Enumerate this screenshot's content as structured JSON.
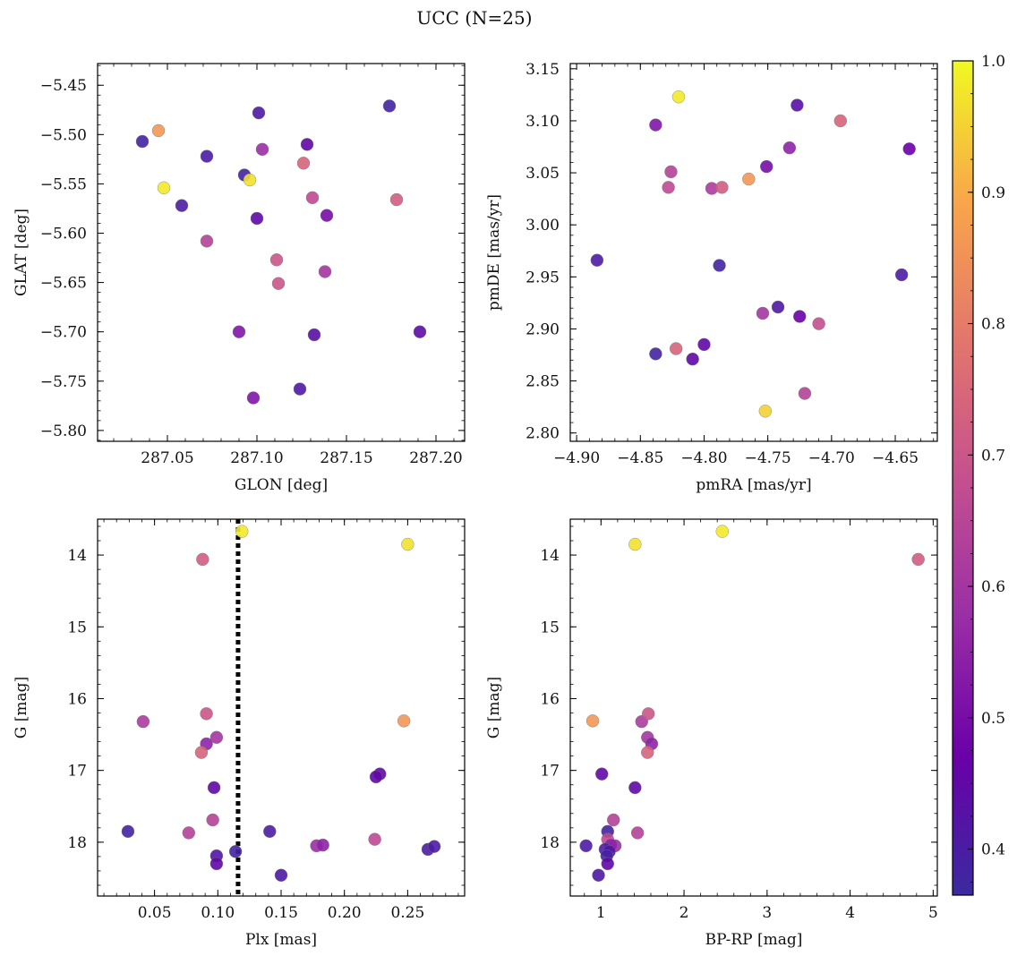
{
  "title": "UCC (N=25)",
  "colorbar": {
    "min": 0.365,
    "max": 1.0,
    "ticks": [
      0.4,
      0.5,
      0.6,
      0.7,
      0.8,
      0.9,
      1.0
    ],
    "tick_labels": [
      "0.4",
      "0.5",
      "0.6",
      "0.7",
      "0.8",
      "0.9",
      "1.0"
    ],
    "colormap": "plasma",
    "colors": [
      "#3b2aa0",
      "#6a00a8",
      "#9a2ea6",
      "#c5508f",
      "#e3766b",
      "#f9a64a",
      "#f0f921"
    ]
  },
  "chart_data": [
    {
      "type": "scatter",
      "xlabel": "GLON [deg]",
      "ylabel": "GLAT [deg]",
      "xlim": [
        287.011,
        287.216
      ],
      "ylim": [
        -5.811,
        -5.428
      ],
      "y_inverted": false,
      "xticks": [
        287.05,
        287.1,
        287.15,
        287.2
      ],
      "xtick_labels": [
        "287.05",
        "287.10",
        "287.15",
        "287.20"
      ],
      "yticks": [
        -5.45,
        -5.5,
        -5.55,
        -5.6,
        -5.65,
        -5.7,
        -5.75,
        -5.8
      ],
      "ytick_labels": [
        "−5.45",
        "−5.50",
        "−5.55",
        "−5.60",
        "−5.65",
        "−5.70",
        "−5.75",
        "−5.80"
      ],
      "points": [
        {
          "x": 287.036,
          "y": -5.507,
          "c": 0.38
        },
        {
          "x": 287.045,
          "y": -5.496,
          "c": 0.86
        },
        {
          "x": 287.048,
          "y": -5.554,
          "c": 0.98
        },
        {
          "x": 287.058,
          "y": -5.572,
          "c": 0.4
        },
        {
          "x": 287.072,
          "y": -5.522,
          "c": 0.4
        },
        {
          "x": 287.072,
          "y": -5.608,
          "c": 0.64
        },
        {
          "x": 287.093,
          "y": -5.541,
          "c": 0.38
        },
        {
          "x": 287.096,
          "y": -5.546,
          "c": 0.97
        },
        {
          "x": 287.101,
          "y": -5.478,
          "c": 0.41
        },
        {
          "x": 287.103,
          "y": -5.515,
          "c": 0.58
        },
        {
          "x": 287.1,
          "y": -5.585,
          "c": 0.45
        },
        {
          "x": 287.111,
          "y": -5.627,
          "c": 0.7
        },
        {
          "x": 287.112,
          "y": -5.651,
          "c": 0.7
        },
        {
          "x": 287.126,
          "y": -5.529,
          "c": 0.74
        },
        {
          "x": 287.128,
          "y": -5.51,
          "c": 0.45
        },
        {
          "x": 287.131,
          "y": -5.564,
          "c": 0.66
        },
        {
          "x": 287.139,
          "y": -5.582,
          "c": 0.5
        },
        {
          "x": 287.138,
          "y": -5.639,
          "c": 0.6
        },
        {
          "x": 287.132,
          "y": -5.703,
          "c": 0.43
        },
        {
          "x": 287.09,
          "y": -5.7,
          "c": 0.52
        },
        {
          "x": 287.098,
          "y": -5.767,
          "c": 0.52
        },
        {
          "x": 287.124,
          "y": -5.758,
          "c": 0.41
        },
        {
          "x": 287.174,
          "y": -5.471,
          "c": 0.38
        },
        {
          "x": 287.178,
          "y": -5.566,
          "c": 0.72
        },
        {
          "x": 287.191,
          "y": -5.7,
          "c": 0.44
        }
      ]
    },
    {
      "type": "scatter",
      "xlabel": "pmRA [mas/yr]",
      "ylabel": "pmDE [mas/yr]",
      "xlim": [
        -4.905,
        -4.617
      ],
      "ylim": [
        2.792,
        3.155
      ],
      "y_inverted": false,
      "xticks": [
        -4.9,
        -4.85,
        -4.8,
        -4.75,
        -4.7,
        -4.65
      ],
      "xtick_labels": [
        "−4.90",
        "−4.85",
        "−4.80",
        "−4.75",
        "−4.70",
        "−4.65"
      ],
      "yticks": [
        2.8,
        2.85,
        2.9,
        2.95,
        3.0,
        3.05,
        3.1,
        3.15
      ],
      "ytick_labels": [
        "2.80",
        "2.85",
        "2.90",
        "2.95",
        "3.00",
        "3.05",
        "3.10",
        "3.15"
      ],
      "points": [
        {
          "x": -4.884,
          "y": 2.966,
          "c": 0.4
        },
        {
          "x": -4.838,
          "y": 3.096,
          "c": 0.52
        },
        {
          "x": -4.82,
          "y": 3.123,
          "c": 0.98
        },
        {
          "x": -4.826,
          "y": 3.051,
          "c": 0.64
        },
        {
          "x": -4.828,
          "y": 3.036,
          "c": 0.66
        },
        {
          "x": -4.794,
          "y": 3.035,
          "c": 0.62
        },
        {
          "x": -4.786,
          "y": 3.036,
          "c": 0.72
        },
        {
          "x": -4.765,
          "y": 3.044,
          "c": 0.86
        },
        {
          "x": -4.751,
          "y": 3.056,
          "c": 0.5
        },
        {
          "x": -4.733,
          "y": 3.074,
          "c": 0.55
        },
        {
          "x": -4.727,
          "y": 3.115,
          "c": 0.43
        },
        {
          "x": -4.693,
          "y": 3.1,
          "c": 0.74
        },
        {
          "x": -4.639,
          "y": 3.073,
          "c": 0.47
        },
        {
          "x": -4.788,
          "y": 2.961,
          "c": 0.38
        },
        {
          "x": -4.645,
          "y": 2.952,
          "c": 0.4
        },
        {
          "x": -4.742,
          "y": 2.921,
          "c": 0.41
        },
        {
          "x": -4.754,
          "y": 2.915,
          "c": 0.6
        },
        {
          "x": -4.725,
          "y": 2.912,
          "c": 0.47
        },
        {
          "x": -4.71,
          "y": 2.905,
          "c": 0.68
        },
        {
          "x": -4.8,
          "y": 2.885,
          "c": 0.45
        },
        {
          "x": -4.822,
          "y": 2.881,
          "c": 0.74
        },
        {
          "x": -4.838,
          "y": 2.876,
          "c": 0.38
        },
        {
          "x": -4.809,
          "y": 2.871,
          "c": 0.45
        },
        {
          "x": -4.721,
          "y": 2.838,
          "c": 0.64
        },
        {
          "x": -4.752,
          "y": 2.821,
          "c": 0.95
        }
      ]
    },
    {
      "type": "scatter",
      "xlabel": "Plx [mas]",
      "ylabel": "G [mag]",
      "xlim": [
        0.005,
        0.295
      ],
      "ylim": [
        13.5,
        18.75
      ],
      "y_inverted": true,
      "vline": {
        "x": 0.116,
        "style": "dotted"
      },
      "xticks": [
        0.05,
        0.1,
        0.15,
        0.2,
        0.25
      ],
      "xtick_labels": [
        "0.05",
        "0.10",
        "0.15",
        "0.20",
        "0.25"
      ],
      "yticks": [
        14,
        15,
        16,
        17,
        18
      ],
      "ytick_labels": [
        "14",
        "15",
        "16",
        "17",
        "18"
      ],
      "points": [
        {
          "x": 0.119,
          "y": 13.67,
          "c": 0.98
        },
        {
          "x": 0.25,
          "y": 13.85,
          "c": 0.97
        },
        {
          "x": 0.088,
          "y": 14.06,
          "c": 0.72
        },
        {
          "x": 0.041,
          "y": 16.32,
          "c": 0.62
        },
        {
          "x": 0.091,
          "y": 16.21,
          "c": 0.7
        },
        {
          "x": 0.099,
          "y": 16.54,
          "c": 0.6
        },
        {
          "x": 0.091,
          "y": 16.63,
          "c": 0.55
        },
        {
          "x": 0.087,
          "y": 16.75,
          "c": 0.74
        },
        {
          "x": 0.247,
          "y": 16.31,
          "c": 0.86
        },
        {
          "x": 0.097,
          "y": 17.24,
          "c": 0.45
        },
        {
          "x": 0.228,
          "y": 17.05,
          "c": 0.45
        },
        {
          "x": 0.225,
          "y": 17.09,
          "c": 0.45
        },
        {
          "x": 0.096,
          "y": 17.69,
          "c": 0.64
        },
        {
          "x": 0.029,
          "y": 17.85,
          "c": 0.38
        },
        {
          "x": 0.077,
          "y": 17.87,
          "c": 0.64
        },
        {
          "x": 0.141,
          "y": 17.85,
          "c": 0.4
        },
        {
          "x": 0.224,
          "y": 17.96,
          "c": 0.66
        },
        {
          "x": 0.178,
          "y": 18.05,
          "c": 0.58
        },
        {
          "x": 0.183,
          "y": 18.04,
          "c": 0.55
        },
        {
          "x": 0.114,
          "y": 18.13,
          "c": 0.38
        },
        {
          "x": 0.099,
          "y": 18.19,
          "c": 0.42
        },
        {
          "x": 0.099,
          "y": 18.3,
          "c": 0.45
        },
        {
          "x": 0.266,
          "y": 18.1,
          "c": 0.4
        },
        {
          "x": 0.271,
          "y": 18.06,
          "c": 0.4
        },
        {
          "x": 0.15,
          "y": 18.46,
          "c": 0.41
        }
      ]
    },
    {
      "type": "scatter",
      "xlabel": "BP-RP [mag]",
      "ylabel": "G [mag]",
      "xlim": [
        0.63,
        5.05
      ],
      "ylim": [
        13.5,
        18.75
      ],
      "y_inverted": true,
      "xticks": [
        1,
        2,
        3,
        4,
        5
      ],
      "xtick_labels": [
        "1",
        "2",
        "3",
        "4",
        "5"
      ],
      "yticks": [
        14,
        15,
        16,
        17,
        18
      ],
      "ytick_labels": [
        "14",
        "15",
        "16",
        "17",
        "18"
      ],
      "points": [
        {
          "x": 2.46,
          "y": 13.67,
          "c": 0.98
        },
        {
          "x": 1.41,
          "y": 13.85,
          "c": 0.97
        },
        {
          "x": 4.82,
          "y": 14.06,
          "c": 0.72
        },
        {
          "x": 0.9,
          "y": 16.31,
          "c": 0.86
        },
        {
          "x": 1.49,
          "y": 16.32,
          "c": 0.62
        },
        {
          "x": 1.57,
          "y": 16.21,
          "c": 0.7
        },
        {
          "x": 1.56,
          "y": 16.54,
          "c": 0.6
        },
        {
          "x": 1.61,
          "y": 16.63,
          "c": 0.55
        },
        {
          "x": 1.56,
          "y": 16.75,
          "c": 0.74
        },
        {
          "x": 1.01,
          "y": 17.05,
          "c": 0.45
        },
        {
          "x": 1.41,
          "y": 17.24,
          "c": 0.45
        },
        {
          "x": 1.15,
          "y": 17.69,
          "c": 0.64
        },
        {
          "x": 1.08,
          "y": 17.85,
          "c": 0.38
        },
        {
          "x": 1.44,
          "y": 17.87,
          "c": 0.64
        },
        {
          "x": 1.08,
          "y": 17.96,
          "c": 0.66
        },
        {
          "x": 0.82,
          "y": 18.05,
          "c": 0.4
        },
        {
          "x": 1.17,
          "y": 18.05,
          "c": 0.58
        },
        {
          "x": 1.12,
          "y": 18.04,
          "c": 0.55
        },
        {
          "x": 1.05,
          "y": 18.1,
          "c": 0.4
        },
        {
          "x": 1.1,
          "y": 18.13,
          "c": 0.42
        },
        {
          "x": 1.07,
          "y": 18.19,
          "c": 0.38
        },
        {
          "x": 1.08,
          "y": 18.3,
          "c": 0.45
        },
        {
          "x": 0.97,
          "y": 18.46,
          "c": 0.41
        }
      ]
    }
  ]
}
